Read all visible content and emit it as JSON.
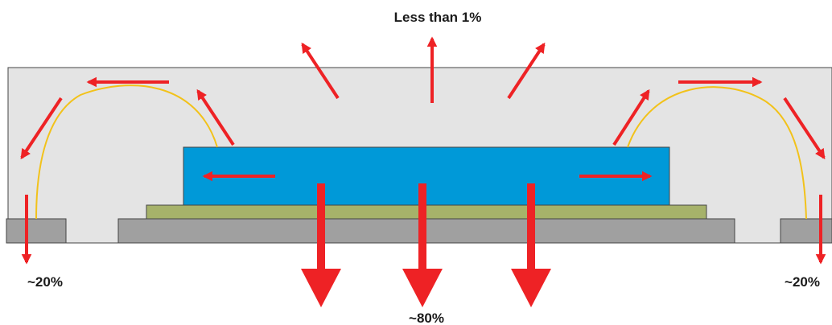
{
  "labels": {
    "top": "Less than 1%",
    "left": "~20%",
    "right": "~20%",
    "bottom": "~80%"
  },
  "colors": {
    "mold": "#e4e4e4",
    "die": "#0099d8",
    "attach": "#a6b26a",
    "pad": "#a0a0a0",
    "wire": "#f2c21a",
    "arrow": "#ee2225",
    "outline": "#444444"
  }
}
